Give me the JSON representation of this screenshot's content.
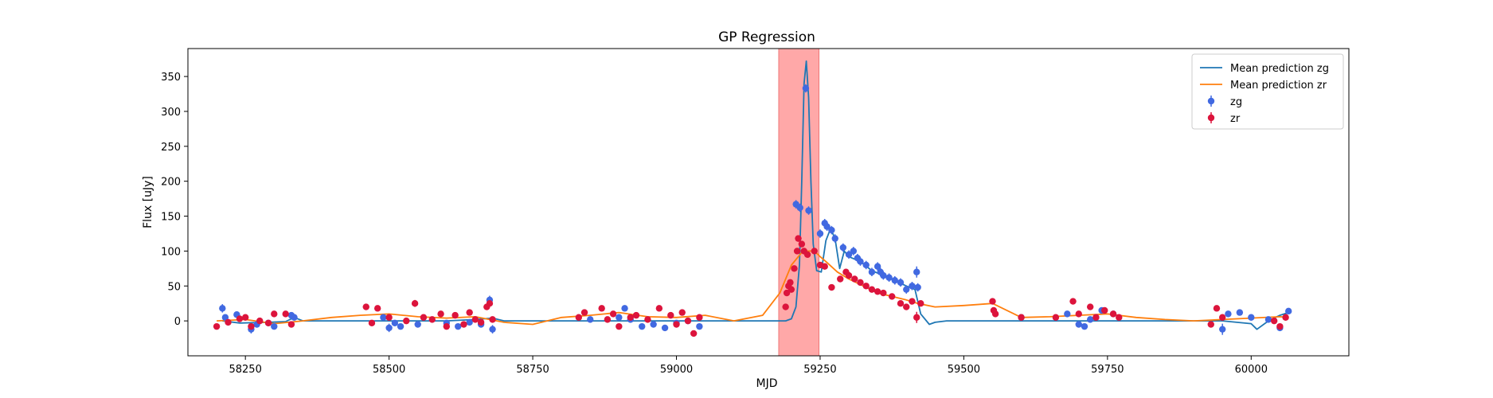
{
  "chart_data": {
    "type": "scatter",
    "title": "GP Regression",
    "xlabel": "MJD",
    "ylabel": "Flux [uJy]",
    "xlim": [
      58150,
      60170
    ],
    "ylim": [
      -50,
      390
    ],
    "x_ticks": [
      58250,
      58500,
      58750,
      59000,
      59250,
      59500,
      59750,
      60000
    ],
    "y_ticks": [
      0,
      50,
      100,
      150,
      200,
      250,
      300,
      350
    ],
    "grid": false,
    "legend_position": "top-right",
    "shaded_region": {
      "x_start": 59178,
      "x_end": 59248,
      "color": "#ff9999"
    },
    "colors": {
      "zg_line": "#1f77b4",
      "zr_line": "#ff7f0e",
      "zg_points": "#4169e1",
      "zr_points": "#dc143c"
    },
    "series": [
      {
        "name": "Mean prediction zg",
        "kind": "line",
        "x": [
          58210,
          58240,
          58290,
          58320,
          58335,
          58350,
          58400,
          58500,
          58600,
          58650,
          58680,
          58700,
          58800,
          58900,
          59000,
          59050,
          59100,
          59150,
          59190,
          59200,
          59208,
          59214,
          59218,
          59222,
          59226,
          59230,
          59234,
          59238,
          59244,
          59252,
          59260,
          59268,
          59276,
          59284,
          59292,
          59300,
          59320,
          59340,
          59360,
          59380,
          59400,
          59415,
          59425,
          59440,
          59450,
          59470,
          59500,
          59600,
          59700,
          59750,
          59800,
          59900,
          59950,
          60000,
          60010,
          60030,
          60050,
          60065
        ],
        "y": [
          0,
          -3,
          -2,
          -1,
          5,
          0,
          0,
          0,
          0,
          2,
          4,
          0,
          0,
          0,
          0,
          0,
          0,
          0,
          0,
          3,
          20,
          80,
          200,
          340,
          372,
          320,
          200,
          110,
          72,
          70,
          115,
          132,
          118,
          75,
          100,
          92,
          85,
          72,
          65,
          58,
          50,
          45,
          10,
          -5,
          -2,
          0,
          0,
          0,
          0,
          0,
          0,
          0,
          0,
          -4,
          -12,
          0,
          8,
          12
        ]
      },
      {
        "name": "Mean prediction zr",
        "kind": "line",
        "x": [
          58200,
          58250,
          58300,
          58350,
          58400,
          58450,
          58500,
          58550,
          58600,
          58650,
          58700,
          58750,
          58800,
          58850,
          58900,
          58950,
          59000,
          59050,
          59100,
          59150,
          59180,
          59200,
          59220,
          59240,
          59250,
          59260,
          59280,
          59300,
          59350,
          59400,
          59420,
          59450,
          59500,
          59550,
          59600,
          59650,
          59700,
          59750,
          59800,
          59850,
          59900,
          59950,
          60000,
          60050,
          60065
        ],
        "y": [
          0,
          2,
          -4,
          0,
          5,
          8,
          10,
          6,
          4,
          6,
          -2,
          -5,
          5,
          8,
          12,
          6,
          5,
          8,
          0,
          8,
          40,
          80,
          100,
          100,
          92,
          85,
          70,
          60,
          40,
          30,
          25,
          20,
          22,
          25,
          5,
          6,
          8,
          10,
          5,
          2,
          0,
          2,
          4,
          6,
          5
        ]
      },
      {
        "name": "zg",
        "kind": "points",
        "points": [
          [
            58210,
            18,
            6
          ],
          [
            58215,
            5,
            4
          ],
          [
            58235,
            9,
            3
          ],
          [
            58260,
            -12,
            6
          ],
          [
            58270,
            -5,
            4
          ],
          [
            58290,
            -3,
            3
          ],
          [
            58300,
            -8,
            4
          ],
          [
            58330,
            8,
            4
          ],
          [
            58335,
            5,
            3
          ],
          [
            58490,
            5,
            4
          ],
          [
            58500,
            -10,
            6
          ],
          [
            58510,
            -3,
            4
          ],
          [
            58520,
            -8,
            3
          ],
          [
            58550,
            -5,
            4
          ],
          [
            58600,
            -3,
            3
          ],
          [
            58620,
            -8,
            4
          ],
          [
            58640,
            -2,
            3
          ],
          [
            58660,
            -5,
            4
          ],
          [
            58675,
            30,
            6
          ],
          [
            58680,
            -12,
            6
          ],
          [
            58850,
            2,
            3
          ],
          [
            58900,
            5,
            3
          ],
          [
            58910,
            18,
            4
          ],
          [
            58920,
            2,
            3
          ],
          [
            58940,
            -8,
            3
          ],
          [
            58960,
            -5,
            3
          ],
          [
            58980,
            -10,
            3
          ],
          [
            59000,
            -3,
            3
          ],
          [
            59020,
            0,
            3
          ],
          [
            59040,
            -8,
            3
          ],
          [
            59208,
            167,
            6
          ],
          [
            59215,
            162,
            6
          ],
          [
            59225,
            333,
            6
          ],
          [
            59230,
            158,
            6
          ],
          [
            59250,
            125,
            6
          ],
          [
            59258,
            140,
            6
          ],
          [
            59262,
            135,
            6
          ],
          [
            59270,
            130,
            6
          ],
          [
            59276,
            118,
            6
          ],
          [
            59290,
            105,
            6
          ],
          [
            59300,
            95,
            6
          ],
          [
            59308,
            100,
            6
          ],
          [
            59315,
            90,
            6
          ],
          [
            59320,
            85,
            6
          ],
          [
            59330,
            80,
            6
          ],
          [
            59340,
            70,
            6
          ],
          [
            59350,
            78,
            6
          ],
          [
            59355,
            70,
            6
          ],
          [
            59360,
            65,
            6
          ],
          [
            59370,
            62,
            6
          ],
          [
            59380,
            58,
            6
          ],
          [
            59390,
            55,
            6
          ],
          [
            59400,
            45,
            6
          ],
          [
            59410,
            50,
            6
          ],
          [
            59418,
            70,
            8
          ],
          [
            59420,
            48,
            6
          ],
          [
            59600,
            5,
            3
          ],
          [
            59680,
            10,
            3
          ],
          [
            59700,
            -5,
            4
          ],
          [
            59710,
            -8,
            4
          ],
          [
            59720,
            2,
            3
          ],
          [
            59730,
            5,
            3
          ],
          [
            59740,
            15,
            3
          ],
          [
            59760,
            10,
            3
          ],
          [
            59950,
            -12,
            8
          ],
          [
            59960,
            10,
            3
          ],
          [
            59980,
            12,
            3
          ],
          [
            60000,
            5,
            3
          ],
          [
            60030,
            2,
            3
          ],
          [
            60050,
            -10,
            4
          ],
          [
            60065,
            14,
            3
          ]
        ]
      },
      {
        "name": "zr",
        "kind": "points",
        "points": [
          [
            58200,
            -8,
            3
          ],
          [
            58220,
            -2,
            4
          ],
          [
            58240,
            3,
            3
          ],
          [
            58250,
            5,
            3
          ],
          [
            58260,
            -8,
            4
          ],
          [
            58275,
            0,
            3
          ],
          [
            58290,
            -3,
            3
          ],
          [
            58300,
            10,
            3
          ],
          [
            58320,
            10,
            3
          ],
          [
            58330,
            -5,
            3
          ],
          [
            58460,
            20,
            4
          ],
          [
            58470,
            -3,
            3
          ],
          [
            58480,
            18,
            3
          ],
          [
            58500,
            5,
            4
          ],
          [
            58530,
            0,
            3
          ],
          [
            58545,
            25,
            5
          ],
          [
            58560,
            5,
            3
          ],
          [
            58575,
            2,
            3
          ],
          [
            58590,
            10,
            3
          ],
          [
            58600,
            -8,
            4
          ],
          [
            58615,
            8,
            3
          ],
          [
            58630,
            -5,
            3
          ],
          [
            58640,
            12,
            4
          ],
          [
            58650,
            2,
            3
          ],
          [
            58660,
            -2,
            3
          ],
          [
            58670,
            20,
            4
          ],
          [
            58675,
            25,
            4
          ],
          [
            58680,
            2,
            3
          ],
          [
            58830,
            5,
            3
          ],
          [
            58840,
            12,
            3
          ],
          [
            58870,
            18,
            4
          ],
          [
            58880,
            2,
            3
          ],
          [
            58890,
            10,
            3
          ],
          [
            58900,
            -8,
            3
          ],
          [
            58920,
            5,
            3
          ],
          [
            58930,
            8,
            3
          ],
          [
            58950,
            2,
            3
          ],
          [
            58970,
            18,
            3
          ],
          [
            58990,
            8,
            3
          ],
          [
            59000,
            -5,
            4
          ],
          [
            59010,
            12,
            4
          ],
          [
            59020,
            0,
            3
          ],
          [
            59030,
            -18,
            4
          ],
          [
            59040,
            5,
            3
          ],
          [
            59190,
            20,
            3
          ],
          [
            59192,
            40,
            3
          ],
          [
            59195,
            50,
            4
          ],
          [
            59198,
            55,
            3
          ],
          [
            59200,
            45,
            3
          ],
          [
            59205,
            75,
            3
          ],
          [
            59210,
            100,
            4
          ],
          [
            59212,
            118,
            4
          ],
          [
            59218,
            110,
            4
          ],
          [
            59222,
            100,
            4
          ],
          [
            59228,
            95,
            4
          ],
          [
            59240,
            100,
            4
          ],
          [
            59250,
            80,
            4
          ],
          [
            59258,
            78,
            4
          ],
          [
            59270,
            48,
            4
          ],
          [
            59285,
            60,
            4
          ],
          [
            59295,
            70,
            4
          ],
          [
            59300,
            65,
            4
          ],
          [
            59310,
            60,
            4
          ],
          [
            59320,
            55,
            4
          ],
          [
            59330,
            50,
            4
          ],
          [
            59340,
            45,
            4
          ],
          [
            59350,
            42,
            4
          ],
          [
            59360,
            40,
            4
          ],
          [
            59375,
            35,
            4
          ],
          [
            59390,
            25,
            4
          ],
          [
            59400,
            20,
            4
          ],
          [
            59410,
            28,
            4
          ],
          [
            59418,
            5,
            8
          ],
          [
            59425,
            25,
            4
          ],
          [
            59550,
            28,
            4
          ],
          [
            59552,
            15,
            4
          ],
          [
            59555,
            10,
            4
          ],
          [
            59600,
            5,
            3
          ],
          [
            59660,
            5,
            3
          ],
          [
            59690,
            28,
            4
          ],
          [
            59700,
            10,
            3
          ],
          [
            59720,
            20,
            3
          ],
          [
            59730,
            5,
            3
          ],
          [
            59745,
            15,
            3
          ],
          [
            59760,
            10,
            3
          ],
          [
            59770,
            5,
            3
          ],
          [
            59930,
            -5,
            3
          ],
          [
            59940,
            18,
            4
          ],
          [
            59950,
            5,
            3
          ],
          [
            60040,
            0,
            3
          ],
          [
            60050,
            -8,
            3
          ],
          [
            60060,
            5,
            3
          ]
        ]
      }
    ]
  }
}
